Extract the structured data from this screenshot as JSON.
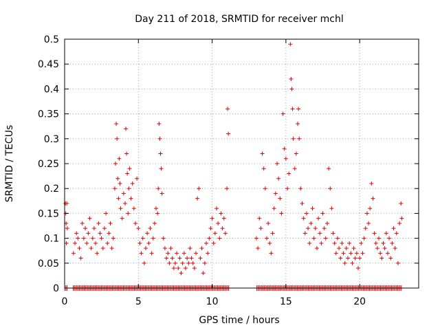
{
  "chart_data": {
    "type": "scatter",
    "title": "Day 211 of 2018, SRMTID for receiver mchl",
    "xlabel": "GPS time / hours",
    "ylabel": "SRMTID / TECUs",
    "xlim": [
      0,
      24
    ],
    "ylim": [
      0,
      0.5
    ],
    "x_ticks": [
      0,
      5,
      10,
      15,
      20
    ],
    "x_tick_labels": [
      "0",
      "5",
      "10",
      "15",
      "20"
    ],
    "y_ticks": [
      0,
      0.05,
      0.1,
      0.15,
      0.2,
      0.25,
      0.3,
      0.35,
      0.4,
      0.45,
      0.5
    ],
    "y_tick_labels": [
      "0",
      "0.05",
      "0.1",
      "0.15",
      "0.2",
      "0.25",
      "0.3",
      "0.35",
      "0.4",
      "0.45",
      "0.5"
    ],
    "grid": true,
    "marker": "+",
    "color": "#e00000",
    "series": [
      {
        "name": "SRMTID",
        "points": [
          [
            0.05,
            0.17
          ],
          [
            0.08,
            0.15
          ],
          [
            0.1,
            0.13
          ],
          [
            0.12,
            0.09
          ],
          [
            0.15,
            0.17
          ],
          [
            0.18,
            0.12
          ],
          [
            0.6,
            0.07
          ],
          [
            0.7,
            0.09
          ],
          [
            0.8,
            0.11
          ],
          [
            0.9,
            0.1
          ],
          [
            1.0,
            0.08
          ],
          [
            1.1,
            0.06
          ],
          [
            1.2,
            0.13
          ],
          [
            1.3,
            0.1
          ],
          [
            1.4,
            0.12
          ],
          [
            1.5,
            0.09
          ],
          [
            1.6,
            0.11
          ],
          [
            1.7,
            0.14
          ],
          [
            1.8,
            0.08
          ],
          [
            1.9,
            0.1
          ],
          [
            2.0,
            0.12
          ],
          [
            2.1,
            0.09
          ],
          [
            2.2,
            0.07
          ],
          [
            2.3,
            0.13
          ],
          [
            2.4,
            0.11
          ],
          [
            2.5,
            0.1
          ],
          [
            2.6,
            0.08
          ],
          [
            2.7,
            0.12
          ],
          [
            2.8,
            0.15
          ],
          [
            2.9,
            0.09
          ],
          [
            3.0,
            0.11
          ],
          [
            3.1,
            0.13
          ],
          [
            3.2,
            0.08
          ],
          [
            3.3,
            0.1
          ],
          [
            3.4,
            0.2
          ],
          [
            3.45,
            0.25
          ],
          [
            3.5,
            0.33
          ],
          [
            3.55,
            0.3
          ],
          [
            3.6,
            0.22
          ],
          [
            3.65,
            0.18
          ],
          [
            3.7,
            0.26
          ],
          [
            3.75,
            0.21
          ],
          [
            3.8,
            0.16
          ],
          [
            3.9,
            0.14
          ],
          [
            4.0,
            0.19
          ],
          [
            4.1,
            0.17
          ],
          [
            4.15,
            0.32
          ],
          [
            4.2,
            0.27
          ],
          [
            4.25,
            0.23
          ],
          [
            4.3,
            0.15
          ],
          [
            4.35,
            0.2
          ],
          [
            4.4,
            0.24
          ],
          [
            4.5,
            0.18
          ],
          [
            4.6,
            0.21
          ],
          [
            4.7,
            0.16
          ],
          [
            4.8,
            0.13
          ],
          [
            4.9,
            0.22
          ],
          [
            5.0,
            0.12
          ],
          [
            5.1,
            0.09
          ],
          [
            5.2,
            0.07
          ],
          [
            5.3,
            0.1
          ],
          [
            5.4,
            0.05
          ],
          [
            5.5,
            0.08
          ],
          [
            5.6,
            0.11
          ],
          [
            5.7,
            0.09
          ],
          [
            5.8,
            0.12
          ],
          [
            5.9,
            0.07
          ],
          [
            6.0,
            0.1
          ],
          [
            6.1,
            0.13
          ],
          [
            6.2,
            0.16
          ],
          [
            6.3,
            0.15
          ],
          [
            6.35,
            0.2
          ],
          [
            6.4,
            0.33
          ],
          [
            6.45,
            0.3
          ],
          [
            6.5,
            0.27
          ],
          [
            6.55,
            0.24
          ],
          [
            6.6,
            0.19
          ],
          [
            6.7,
            0.1
          ],
          [
            6.8,
            0.08
          ],
          [
            6.9,
            0.06
          ],
          [
            7.0,
            0.07
          ],
          [
            7.1,
            0.05
          ],
          [
            7.2,
            0.08
          ],
          [
            7.3,
            0.06
          ],
          [
            7.4,
            0.04
          ],
          [
            7.5,
            0.05
          ],
          [
            7.6,
            0.07
          ],
          [
            7.7,
            0.04
          ],
          [
            7.8,
            0.06
          ],
          [
            7.9,
            0.03
          ],
          [
            8.0,
            0.05
          ],
          [
            8.1,
            0.07
          ],
          [
            8.2,
            0.04
          ],
          [
            8.3,
            0.06
          ],
          [
            8.4,
            0.05
          ],
          [
            8.5,
            0.08
          ],
          [
            8.6,
            0.06
          ],
          [
            8.7,
            0.05
          ],
          [
            8.8,
            0.04
          ],
          [
            8.9,
            0.07
          ],
          [
            9.0,
            0.18
          ],
          [
            9.1,
            0.2
          ],
          [
            9.2,
            0.06
          ],
          [
            9.3,
            0.08
          ],
          [
            9.4,
            0.03
          ],
          [
            9.5,
            0.05
          ],
          [
            9.6,
            0.09
          ],
          [
            9.7,
            0.07
          ],
          [
            9.8,
            0.1
          ],
          [
            9.9,
            0.12
          ],
          [
            10.0,
            0.14
          ],
          [
            10.1,
            0.09
          ],
          [
            10.2,
            0.11
          ],
          [
            10.3,
            0.16
          ],
          [
            10.4,
            0.13
          ],
          [
            10.5,
            0.1
          ],
          [
            10.6,
            0.15
          ],
          [
            10.7,
            0.12
          ],
          [
            10.8,
            0.14
          ],
          [
            10.9,
            0.11
          ],
          [
            11.0,
            0.2
          ],
          [
            11.05,
            0.36
          ],
          [
            11.1,
            0.31
          ],
          [
            13.0,
            0.1
          ],
          [
            13.1,
            0.08
          ],
          [
            13.2,
            0.14
          ],
          [
            13.3,
            0.12
          ],
          [
            13.4,
            0.27
          ],
          [
            13.5,
            0.24
          ],
          [
            13.6,
            0.2
          ],
          [
            13.7,
            0.1
          ],
          [
            13.8,
            0.13
          ],
          [
            13.9,
            0.09
          ],
          [
            14.0,
            0.07
          ],
          [
            14.1,
            0.11
          ],
          [
            14.2,
            0.16
          ],
          [
            14.3,
            0.19
          ],
          [
            14.4,
            0.25
          ],
          [
            14.5,
            0.22
          ],
          [
            14.6,
            0.18
          ],
          [
            14.7,
            0.15
          ],
          [
            14.8,
            0.35
          ],
          [
            14.9,
            0.28
          ],
          [
            15.0,
            0.26
          ],
          [
            15.1,
            0.2
          ],
          [
            15.2,
            0.23
          ],
          [
            15.3,
            0.49
          ],
          [
            15.35,
            0.42
          ],
          [
            15.4,
            0.4
          ],
          [
            15.45,
            0.36
          ],
          [
            15.5,
            0.3
          ],
          [
            15.6,
            0.24
          ],
          [
            15.7,
            0.27
          ],
          [
            15.8,
            0.33
          ],
          [
            15.85,
            0.36
          ],
          [
            15.9,
            0.3
          ],
          [
            16.0,
            0.2
          ],
          [
            16.1,
            0.17
          ],
          [
            16.2,
            0.14
          ],
          [
            16.3,
            0.11
          ],
          [
            16.4,
            0.15
          ],
          [
            16.5,
            0.12
          ],
          [
            16.6,
            0.09
          ],
          [
            16.7,
            0.13
          ],
          [
            16.8,
            0.16
          ],
          [
            16.9,
            0.1
          ],
          [
            17.0,
            0.12
          ],
          [
            17.1,
            0.08
          ],
          [
            17.2,
            0.14
          ],
          [
            17.3,
            0.11
          ],
          [
            17.4,
            0.09
          ],
          [
            17.5,
            0.15
          ],
          [
            17.6,
            0.12
          ],
          [
            17.7,
            0.1
          ],
          [
            17.8,
            0.13
          ],
          [
            17.9,
            0.24
          ],
          [
            18.0,
            0.2
          ],
          [
            18.1,
            0.16
          ],
          [
            18.2,
            0.11
          ],
          [
            18.3,
            0.09
          ],
          [
            18.4,
            0.07
          ],
          [
            18.5,
            0.1
          ],
          [
            18.6,
            0.08
          ],
          [
            18.7,
            0.06
          ],
          [
            18.8,
            0.09
          ],
          [
            18.9,
            0.07
          ],
          [
            19.0,
            0.05
          ],
          [
            19.1,
            0.08
          ],
          [
            19.2,
            0.06
          ],
          [
            19.3,
            0.09
          ],
          [
            19.4,
            0.07
          ],
          [
            19.5,
            0.05
          ],
          [
            19.6,
            0.08
          ],
          [
            19.7,
            0.06
          ],
          [
            19.8,
            0.07
          ],
          [
            19.9,
            0.04
          ],
          [
            20.0,
            0.06
          ],
          [
            20.1,
            0.09
          ],
          [
            20.2,
            0.07
          ],
          [
            20.3,
            0.1
          ],
          [
            20.4,
            0.12
          ],
          [
            20.5,
            0.15
          ],
          [
            20.6,
            0.13
          ],
          [
            20.7,
            0.16
          ],
          [
            20.8,
            0.21
          ],
          [
            20.9,
            0.18
          ],
          [
            21.0,
            0.11
          ],
          [
            21.1,
            0.09
          ],
          [
            21.2,
            0.08
          ],
          [
            21.3,
            0.1
          ],
          [
            21.4,
            0.07
          ],
          [
            21.5,
            0.06
          ],
          [
            21.6,
            0.09
          ],
          [
            21.7,
            0.08
          ],
          [
            21.8,
            0.11
          ],
          [
            21.9,
            0.07
          ],
          [
            22.0,
            0.1
          ],
          [
            22.1,
            0.06
          ],
          [
            22.2,
            0.09
          ],
          [
            22.3,
            0.12
          ],
          [
            22.4,
            0.08
          ],
          [
            22.5,
            0.11
          ],
          [
            22.6,
            0.05
          ],
          [
            22.7,
            0.13
          ],
          [
            22.8,
            0.17
          ],
          [
            22.85,
            0.14
          ]
        ]
      }
    ],
    "zero_line_gaps": [
      [
        0.2,
        0.5
      ],
      [
        11.2,
        13.0
      ],
      [
        22.9,
        24
      ]
    ]
  }
}
